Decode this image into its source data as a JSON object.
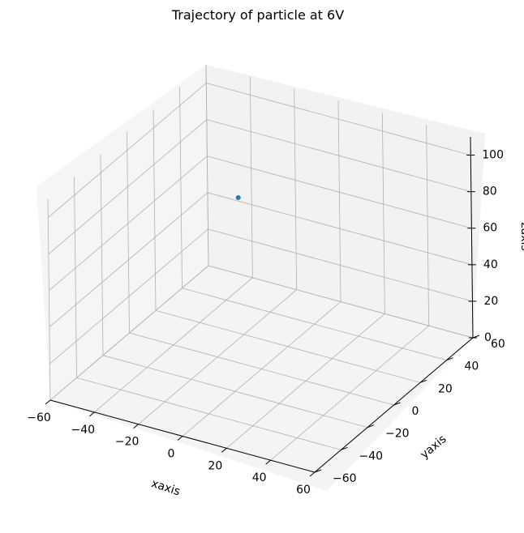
{
  "chart_data": {
    "type": "scatter",
    "projection": "3d",
    "title": "Trajectory of particle at 6V",
    "xlabel": "xaxis",
    "ylabel": "yaxis",
    "zlabel": "zaxis",
    "xlim": [
      -60,
      60
    ],
    "ylim": [
      -60,
      60
    ],
    "zlim": [
      0,
      110
    ],
    "xticks": [
      "−60",
      "−40",
      "−20",
      "0",
      "20",
      "40",
      "60"
    ],
    "yticks": [
      "−60",
      "−40",
      "−20",
      "0",
      "20",
      "40",
      "60"
    ],
    "zticks": [
      "0",
      "20",
      "40",
      "60",
      "80",
      "100"
    ],
    "grid": true,
    "series": [
      {
        "x": [
          -40
        ],
        "y": [
          50
        ],
        "z": [
          50
        ],
        "color": "#1f77b4"
      }
    ]
  }
}
